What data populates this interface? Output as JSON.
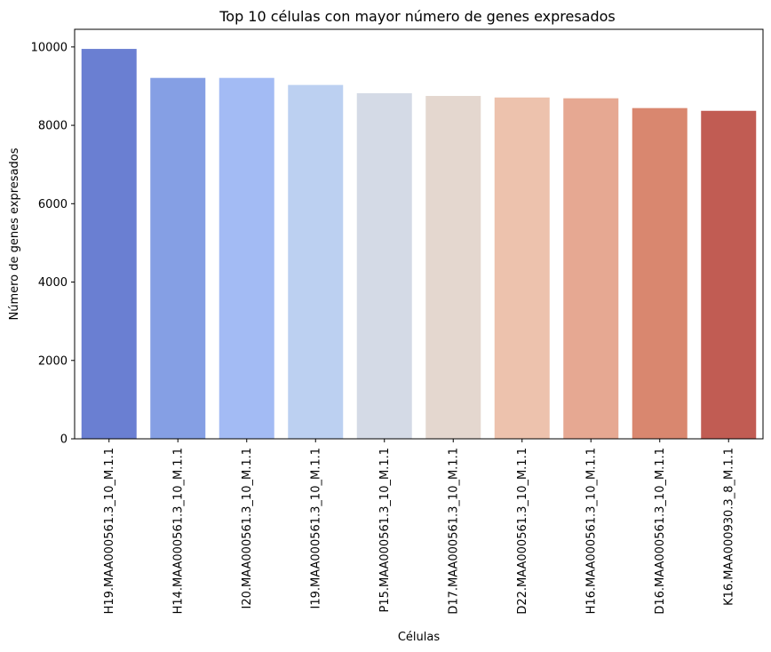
{
  "chart_data": {
    "type": "bar",
    "title": "Top 10 células con mayor número de genes expresados",
    "xlabel": "Células",
    "ylabel": "Número de genes expresados",
    "ylim": [
      0,
      10450
    ],
    "yticks": [
      0,
      2000,
      4000,
      6000,
      8000,
      10000
    ],
    "grid": false,
    "legend": "none",
    "palette": "coolwarm",
    "categories": [
      "H19.MAA000561.3_10_M.1.1",
      "H14.MAA000561.3_10_M.1.1",
      "I20.MAA000561.3_10_M.1.1",
      "I19.MAA000561.3_10_M.1.1",
      "P15.MAA000561.3_10_M.1.1",
      "D17.MAA000561.3_10_M.1.1",
      "D22.MAA000561.3_10_M.1.1",
      "H16.MAA000561.3_10_M.1.1",
      "D16.MAA000561.3_10_M.1.1",
      "K16.MAA000930.3_8_M.1.1"
    ],
    "values": [
      9950,
      9210,
      9210,
      9030,
      8820,
      8750,
      8710,
      8690,
      8440,
      8370
    ],
    "colors": [
      "#6a7fd2",
      "#859fe4",
      "#a3bbf4",
      "#bcd0f1",
      "#d4dae6",
      "#e4d7cf",
      "#edc2ad",
      "#e6a892",
      "#d9876f",
      "#c15c53"
    ]
  }
}
